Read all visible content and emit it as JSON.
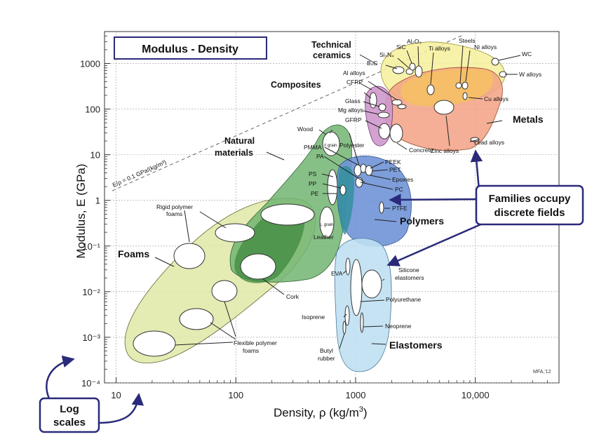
{
  "chart_data": {
    "type": "scatter",
    "title": "Modulus - Density",
    "xlabel": "Density, ρ (kg/m³)",
    "ylabel": "Modulus, E (GPa)",
    "xscale": "log",
    "yscale": "log",
    "xlim": [
      8,
      50000
    ],
    "ylim": [
      0.0001,
      5000
    ],
    "x_ticks": [
      10,
      100,
      1000,
      10000
    ],
    "x_tick_labels": [
      "10",
      "100",
      "1000",
      "10,000"
    ],
    "y_ticks": [
      0.0001,
      0.001,
      0.01,
      0.1,
      1,
      10,
      100,
      1000
    ],
    "y_tick_labels": [
      "10⁻⁴",
      "10⁻³",
      "10⁻²",
      "10⁻¹",
      "1",
      "10",
      "100",
      "1000"
    ],
    "guide_line": {
      "label": "E/ρ = 0.1 GPa/(kg/m³)",
      "slope_constant": 0.1
    },
    "families": [
      {
        "name": "Technical ceramics",
        "color": "#f6f09a"
      },
      {
        "name": "Composites",
        "color": "#cf98cc"
      },
      {
        "name": "Metals",
        "color": "#f2a184"
      },
      {
        "name": "Natural materials",
        "color": "#72b572"
      },
      {
        "name": "Polymers",
        "color": "#6f93d6"
      },
      {
        "name": "Foams",
        "color": "#dfe8a6"
      },
      {
        "name": "Elastomers",
        "color": "#bfe0f2"
      }
    ],
    "materials": [
      {
        "name": "Al₂O₃",
        "family": "Technical ceramics",
        "density": 3900,
        "modulus": 380
      },
      {
        "name": "SiC",
        "family": "Technical ceramics",
        "density": 3200,
        "modulus": 420
      },
      {
        "name": "Si₃N₄",
        "family": "Technical ceramics",
        "density": 3200,
        "modulus": 300
      },
      {
        "name": "B₄C",
        "family": "Technical ceramics",
        "density": 2500,
        "modulus": 450
      },
      {
        "name": "WC",
        "family": "Metals",
        "density": 15600,
        "modulus": 600
      },
      {
        "name": "W alloys",
        "family": "Metals",
        "density": 19000,
        "modulus": 400
      },
      {
        "name": "Steels",
        "family": "Metals",
        "density": 7800,
        "modulus": 210
      },
      {
        "name": "Ni alloys",
        "family": "Metals",
        "density": 8500,
        "modulus": 200
      },
      {
        "name": "Ti alloys",
        "family": "Metals",
        "density": 4500,
        "modulus": 110
      },
      {
        "name": "Cu alloys",
        "family": "Metals",
        "density": 8900,
        "modulus": 125
      },
      {
        "name": "Zinc alloys",
        "family": "Metals",
        "density": 6500,
        "modulus": 85
      },
      {
        "name": "Lead alloys",
        "family": "Metals",
        "density": 11000,
        "modulus": 15
      },
      {
        "name": "Al alloys",
        "family": "Metals",
        "density": 2700,
        "modulus": 72
      },
      {
        "name": "Mg alloys",
        "family": "Metals",
        "density": 1800,
        "modulus": 45
      },
      {
        "name": "CFRP",
        "family": "Composites",
        "density": 1550,
        "modulus": 110
      },
      {
        "name": "GFRP",
        "family": "Composites",
        "density": 1900,
        "modulus": 22
      },
      {
        "name": "Glass",
        "family": "Technical ceramics",
        "density": 2500,
        "modulus": 70
      },
      {
        "name": "Concrete",
        "family": "Technical ceramics",
        "density": 2300,
        "modulus": 30
      },
      {
        "name": "Wood // grain",
        "family": "Natural materials",
        "density": 700,
        "modulus": 12
      },
      {
        "name": "Wood ⊥ grain",
        "family": "Natural materials",
        "density": 700,
        "modulus": 0.5
      },
      {
        "name": "Leather",
        "family": "Natural materials",
        "density": 950,
        "modulus": 0.2
      },
      {
        "name": "Cork",
        "family": "Natural materials",
        "density": 200,
        "modulus": 0.025
      },
      {
        "name": "PMMA",
        "family": "Polymers",
        "density": 1190,
        "modulus": 3.0
      },
      {
        "name": "PA",
        "family": "Polymers",
        "density": 1130,
        "modulus": 2.5
      },
      {
        "name": "PS",
        "family": "Polymers",
        "density": 1050,
        "modulus": 2.3
      },
      {
        "name": "PP",
        "family": "Polymers",
        "density": 900,
        "modulus": 1.5
      },
      {
        "name": "PE",
        "family": "Polymers",
        "density": 950,
        "modulus": 0.8
      },
      {
        "name": "Polyester",
        "family": "Polymers",
        "density": 1200,
        "modulus": 3.5
      },
      {
        "name": "PEEK",
        "family": "Polymers",
        "density": 1300,
        "modulus": 3.8
      },
      {
        "name": "PET",
        "family": "Polymers",
        "density": 1350,
        "modulus": 2.8
      },
      {
        "name": "Epoxies",
        "family": "Polymers",
        "density": 1200,
        "modulus": 2.5
      },
      {
        "name": "PC",
        "family": "Polymers",
        "density": 1200,
        "modulus": 2.3
      },
      {
        "name": "PTFE",
        "family": "Polymers",
        "density": 2150,
        "modulus": 0.5
      },
      {
        "name": "EVA",
        "family": "Elastomers",
        "density": 940,
        "modulus": 0.02
      },
      {
        "name": "Silicone elastomers",
        "family": "Elastomers",
        "density": 1300,
        "modulus": 0.01
      },
      {
        "name": "Polyurethane",
        "family": "Elastomers",
        "density": 1150,
        "modulus": 0.01
      },
      {
        "name": "Isoprene",
        "family": "Elastomers",
        "density": 930,
        "modulus": 0.002
      },
      {
        "name": "Neoprene",
        "family": "Elastomers",
        "density": 1240,
        "modulus": 0.0015
      },
      {
        "name": "Butyl rubber",
        "family": "Elastomers",
        "density": 920,
        "modulus": 0.001
      },
      {
        "name": "Rigid polymer foams",
        "family": "Foams",
        "density": 100,
        "modulus": 0.1
      },
      {
        "name": "Flexible polymer foams",
        "family": "Foams",
        "density": 50,
        "modulus": 0.001
      }
    ],
    "annotations": [
      "Families occupy discrete fields",
      "Log scales",
      "MFA,'12"
    ]
  },
  "labels": {
    "title": "Modulus - Density",
    "ylabel": "Modulus, E (GPa)",
    "xlabel": "Density, ρ (kg/m",
    "xlabel_sup": "3",
    "xlabel_end": ")",
    "guide": "E/ρ = 0.1 GPa/(kg/m³)",
    "fam_ceramics_1": "Technical",
    "fam_ceramics_2": "ceramics",
    "fam_composites": "Composites",
    "fam_metals": "Metals",
    "fam_natural_1": "Natural",
    "fam_natural_2": "materials",
    "fam_polymers": "Polymers",
    "fam_foams": "Foams",
    "fam_elastomers": "Elastomers",
    "callout_families_1": "Families occupy",
    "callout_families_2": "discrete fields",
    "callout_log_1": "Log",
    "callout_log_2": "scales",
    "credit": "MFA,'12",
    "al2o3": "Al₂O₃",
    "sic": "SiC",
    "si3n4": "Si₃N₄",
    "b4c": "B₄C",
    "steels": "Steels",
    "ti_alloys": "Ti alloys",
    "ni_alloys": "Ni alloys",
    "wc": "WC",
    "w_alloys": "W alloys",
    "cu_alloys": "Cu alloys",
    "al_alloys": "Al alloys",
    "cfrp": "CFRP",
    "glass": "Glass",
    "mg_alloys": "Mg alloys",
    "gfrp": "GFRP",
    "concrete": "Concrete",
    "zinc_alloys": "Zinc alloys",
    "lead_alloys": "Lead alloys",
    "wood": "Wood",
    "wood_par": "// grain",
    "wood_perp": "⊥ grain",
    "pmma": "PMMA",
    "pa": "PA",
    "ps": "PS",
    "pp": "PP",
    "pe": "PE",
    "polyester": "Polyester",
    "peek": "PEEK",
    "pet": "PET",
    "epoxies": "Epoxies",
    "pc": "PC",
    "ptfe": "PTFE",
    "leather": "Leather",
    "rigid_1": "Rigid polymer",
    "rigid_2": "foams",
    "cork": "Cork",
    "flex_1": "Flexible polymer",
    "flex_2": "foams",
    "eva": "EVA",
    "silicone_1": "Silicone",
    "silicone_2": "elastomers",
    "polyurethane": "Polyurethane",
    "isoprene": "Isoprene",
    "neoprene": "Neoprene",
    "butyl_1": "Butyl",
    "butyl_2": "rubber"
  }
}
